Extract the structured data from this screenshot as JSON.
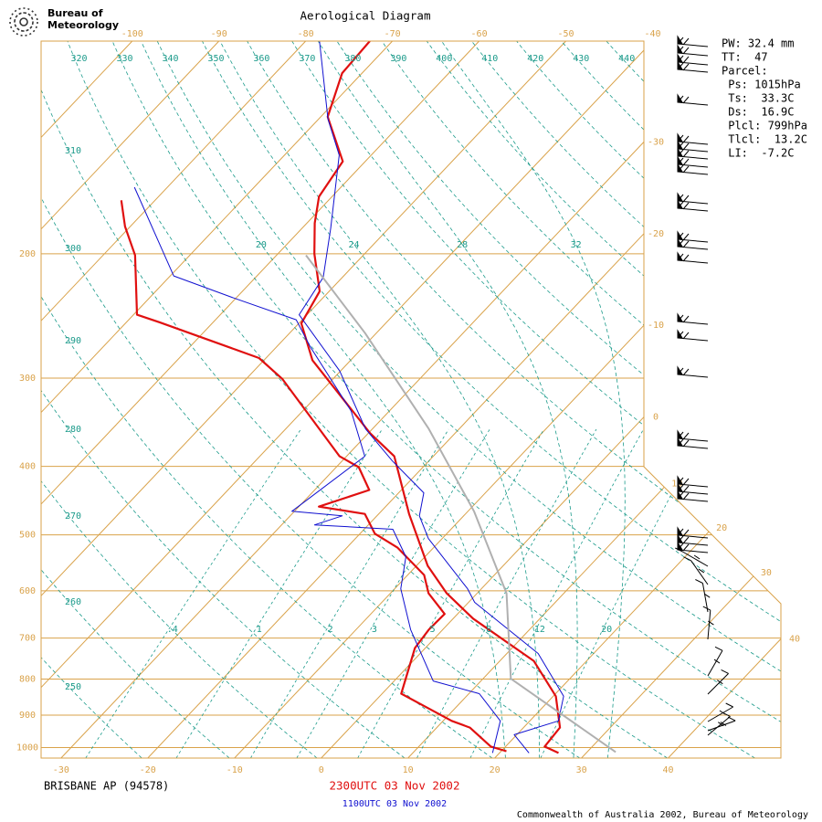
{
  "chart_data": {
    "type": "skewt",
    "title": "Aerological Diagram",
    "logo_text": [
      "Bureau of",
      "Meteorology"
    ],
    "station": "BRISBANE AP (94578)",
    "footer": "Commonwealth of Australia 2002, Bureau of Meteorology",
    "indices": [
      "PW: 32.4 mm",
      "TT:  47",
      "Parcel:",
      " Ps: 1015hPa",
      " Ts:  33.3C",
      " Ds:  16.9C",
      " Plcl: 799hPa",
      " Tlcl:  13.2C",
      " LI:  -7.2C"
    ],
    "log_y": true,
    "xlim": [
      -32.3,
      53
    ],
    "ylim": [
      1035,
      100
    ],
    "xticks": [
      -100,
      -90,
      -80,
      -70,
      -60,
      -50,
      -40,
      -30,
      -20,
      -10,
      0,
      10,
      20,
      30,
      40
    ],
    "yticks": [
      1000,
      900,
      800,
      700,
      600,
      500,
      400,
      300,
      200
    ],
    "dry_adiabats": [
      250,
      260,
      270,
      280,
      290,
      300,
      310,
      320,
      330,
      340,
      350,
      360,
      370,
      380,
      390,
      400,
      410,
      420,
      430,
      440
    ],
    "saturated_adiabats": [
      20,
      24,
      28,
      32
    ],
    "mixing_ratios": [
      {
        "value": 0.4,
        "label": ".4"
      },
      1,
      2,
      3,
      5,
      8,
      12,
      20
    ],
    "grid_color": "#d9a24a",
    "adiabat_color": "#1a9a8a",
    "series": [
      {
        "name": "2300UTC 03 Nov 2002",
        "color": "#e01010",
        "pressure": [
          1018,
          997,
          937,
          846,
          754,
          657,
          605,
          553,
          467,
          387,
          359,
          283,
          251,
          226,
          200,
          181,
          166,
          148,
          128,
          111,
          100
        ],
        "temperature": [
          26.8,
          24.5,
          24.2,
          20.3,
          13.9,
          2.3,
          -3.5,
          -8.7,
          -16.5,
          -24.5,
          -29.8,
          -44.4,
          -49.7,
          -51.1,
          -55.8,
          -59.1,
          -61.5,
          -62.6,
          -69.2,
          -72.3,
          -72.6
        ]
      },
      {
        "color": "#e01010",
        "pressure": [
          1012,
          997,
          937,
          917,
          839,
          723,
          681,
          647,
          605,
          570,
          521,
          498,
          467,
          456,
          432,
          401,
          387,
          301,
          281,
          250,
          244,
          201,
          183,
          168
        ],
        "temperature": [
          20.6,
          18.3,
          13.8,
          11.0,
          2.2,
          -1.2,
          -1.6,
          -1.5,
          -5.6,
          -8.1,
          -14.2,
          -18.3,
          -21.6,
          -27.7,
          -23.7,
          -27.4,
          -30.8,
          -45.8,
          -50.8,
          -66.2,
          -69.6,
          -76.3,
          -80.6,
          -83.9
        ]
      },
      {
        "name": "1100UTC 03 Nov 2002",
        "color": "#1010d0",
        "pressure": [
          1018,
          959,
          917,
          846,
          736,
          623,
          596,
          506,
          470,
          436,
          393,
          354,
          293,
          244,
          216,
          184,
          145,
          129,
          100
        ],
        "temperature": [
          23.4,
          19.7,
          23.3,
          21.2,
          13.6,
          0.7,
          -1.6,
          -11.6,
          -15.1,
          -17.1,
          -24.2,
          -30.8,
          -40.1,
          -50.9,
          -52.2,
          -56.7,
          -63.7,
          -68.9,
          -78.4
        ]
      },
      {
        "color": "#1010d0",
        "pressure": [
          1018,
          917,
          839,
          805,
          681,
          596,
          537,
          491,
          484,
          470,
          463,
          387,
          334,
          271,
          248,
          231,
          215,
          161
        ],
        "temperature": [
          19.2,
          16.6,
          11.2,
          4.5,
          -3.7,
          -9.3,
          -12.2,
          -16.7,
          -26.2,
          -24.0,
          -30.3,
          -27.9,
          -34.4,
          -46.1,
          -50.7,
          -60.3,
          -69.6,
          -83.8
        ]
      },
      {
        "color": "#b0b0b0",
        "pressure": [
          1015,
          799,
          605,
          463,
          354,
          259,
          201
        ],
        "temperature": [
          33.3,
          13.2,
          3.4,
          -9.3,
          -23.5,
          -41.3,
          -56.6
        ]
      }
    ]
  }
}
